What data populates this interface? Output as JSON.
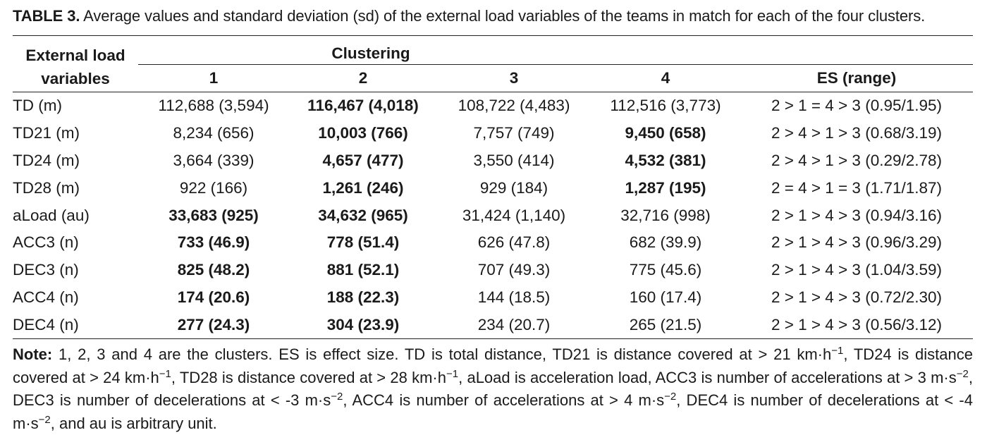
{
  "caption": {
    "label": "TABLE 3.",
    "text": "Average values and standard deviation (sd) of the external load variables of the teams in match for each of the four clusters."
  },
  "table": {
    "header": {
      "variables_line1": "External load",
      "variables_line2": "variables",
      "group": "Clustering",
      "columns": [
        "1",
        "2",
        "3",
        "4",
        "ES (range)"
      ]
    },
    "rows": [
      {
        "variable": "TD (m)",
        "c1": "112,688 (3,594)",
        "c2": "116,467 (4,018)",
        "c3": "108,722 (4,483)",
        "c4": "112,516 (3,773)",
        "es": "2 > 1 = 4 > 3 (0.95/1.95)"
      },
      {
        "variable": "TD21 (m)",
        "c1": "8,234 (656)",
        "c2": "10,003 (766)",
        "c3": "7,757 (749)",
        "c4": "9,450 (658)",
        "es": "2 > 4 > 1 > 3 (0.68/3.19)"
      },
      {
        "variable": "TD24 (m)",
        "c1": "3,664 (339)",
        "c2": "4,657 (477)",
        "c3": "3,550 (414)",
        "c4": "4,532 (381)",
        "es": "2 > 4 > 1 > 3 (0.29/2.78)"
      },
      {
        "variable": "TD28 (m)",
        "c1": "922 (166)",
        "c2": "1,261 (246)",
        "c3": "929 (184)",
        "c4": "1,287 (195)",
        "es": "2 = 4 > 1 = 3 (1.71/1.87)"
      },
      {
        "variable": "aLoad (au)",
        "c1": "33,683 (925)",
        "c2": "34,632 (965)",
        "c3": "31,424 (1,140)",
        "c4": "32,716 (998)",
        "es": "2 > 1 > 4 > 3 (0.94/3.16)"
      },
      {
        "variable": "ACC3 (n)",
        "c1": "733 (46.9)",
        "c2": "778 (51.4)",
        "c3": "626 (47.8)",
        "c4": "682 (39.9)",
        "es": "2 > 1 > 4 > 3 (0.96/3.29)"
      },
      {
        "variable": "DEC3 (n)",
        "c1": "825 (48.2)",
        "c2": "881 (52.1)",
        "c3": "707 (49.3)",
        "c4": "775 (45.6)",
        "es": "2 > 1 > 4 > 3 (1.04/3.59)"
      },
      {
        "variable": "ACC4 (n)",
        "c1": "174 (20.6)",
        "c2": "188 (22.3)",
        "c3": "144 (18.5)",
        "c4": "160 (17.4)",
        "es": "2 > 1 > 4 > 3 (0.72/2.30)"
      },
      {
        "variable": "DEC4 (n)",
        "c1": "277 (24.3)",
        "c2": "304 (23.9)",
        "c3": "234 (20.7)",
        "c4": "265 (21.5)",
        "es": "2 > 1 > 4 > 3 (0.56/3.12)"
      }
    ]
  },
  "note": {
    "label": "Note:",
    "s1": "1, 2, 3 and 4 are the clusters. ES is effect size. TD is total distance, TD21 is distance covered at > 21 km·h",
    "s2": ", TD24 is distance covered at > 24 km·h",
    "s3": ", TD28 is distance covered at > 28 km·h",
    "s4": ", aLoad is acceleration load, ACC3 is number of accelerations at > 3 m·s",
    "s5": ", DEC3 is number of decelerations at < -3 m·s",
    "s6": ", ACC4 is number of accelerations at > 4 m·s",
    "s7": ", DEC4 is number of decelerations at < -4 m·s",
    "s8": ", and au is arbitrary unit.",
    "sup_h": "−1",
    "sup_s": "−2"
  }
}
